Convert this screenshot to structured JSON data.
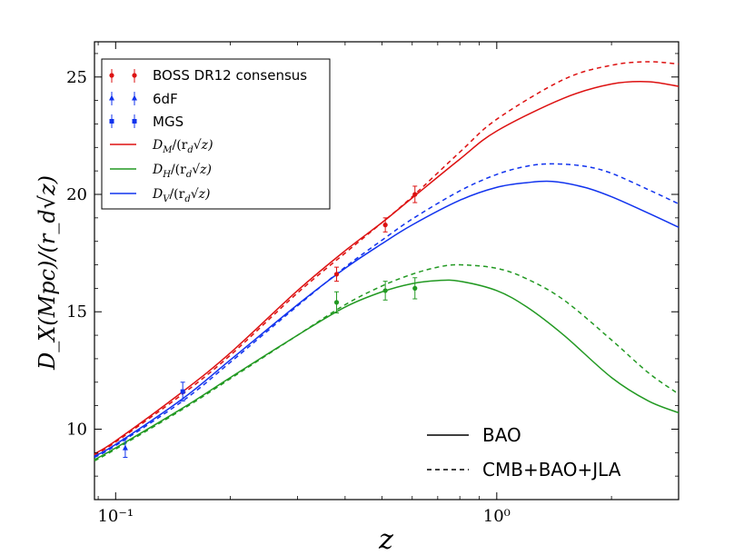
{
  "chart_data": {
    "type": "line",
    "xlabel": "z",
    "ylabel": "D_X(Mpc)/(r_d√z)",
    "xscale": "log",
    "xlim": [
      0.088,
      3.0
    ],
    "ylim": [
      7.0,
      26.5
    ],
    "yticks": [
      10,
      15,
      20,
      25
    ],
    "ytick_labels": [
      "10",
      "15",
      "20",
      "25"
    ],
    "xticks": [
      0.1,
      1.0
    ],
    "xtick_labels": [
      "10⁻¹",
      "10⁰"
    ],
    "grid": false,
    "legend_position": "top-left",
    "series": [
      {
        "name": "D_M/(r_d√z)",
        "label_main": "D",
        "label_sub": "M",
        "label_rest": "/(r",
        "label_sub2": "d",
        "label_tail": "√z)",
        "color": "#dd1111",
        "style": "solid",
        "x": [
          0.088,
          0.1,
          0.15,
          0.2,
          0.3,
          0.4,
          0.5,
          0.6,
          0.8,
          1.0,
          1.5,
          2.0,
          2.5,
          3.0
        ],
        "y": [
          8.95,
          9.5,
          11.6,
          13.25,
          15.9,
          17.6,
          18.8,
          19.85,
          21.5,
          22.7,
          24.1,
          24.7,
          24.8,
          24.6
        ]
      },
      {
        "name": "D_M/(r_d√z) CMB+BAO+JLA",
        "color": "#dd1111",
        "style": "dashed",
        "x": [
          0.088,
          0.1,
          0.15,
          0.2,
          0.3,
          0.4,
          0.5,
          0.6,
          0.8,
          1.0,
          1.5,
          2.0,
          2.5,
          3.0
        ],
        "y": [
          8.9,
          9.45,
          11.5,
          13.15,
          15.8,
          17.5,
          18.8,
          19.9,
          21.8,
          23.2,
          24.9,
          25.5,
          25.65,
          25.55
        ]
      },
      {
        "name": "D_H/(r_d√z)",
        "label_main": "D",
        "label_sub": "H",
        "label_rest": "/(r",
        "label_sub2": "d",
        "label_tail": "√z)",
        "color": "#229922",
        "style": "solid",
        "x": [
          0.088,
          0.1,
          0.15,
          0.2,
          0.3,
          0.4,
          0.5,
          0.6,
          0.7,
          0.8,
          1.0,
          1.2,
          1.5,
          2.0,
          2.5,
          3.0
        ],
        "y": [
          8.7,
          9.2,
          10.9,
          12.2,
          14.0,
          15.2,
          15.85,
          16.2,
          16.33,
          16.3,
          15.9,
          15.2,
          14.0,
          12.2,
          11.2,
          10.7
        ]
      },
      {
        "name": "D_H/(r_d√z) CMB+BAO+JLA",
        "color": "#229922",
        "style": "dashed",
        "x": [
          0.088,
          0.1,
          0.15,
          0.2,
          0.3,
          0.4,
          0.5,
          0.6,
          0.7,
          0.8,
          1.0,
          1.2,
          1.5,
          2.0,
          2.5,
          3.0
        ],
        "y": [
          8.65,
          9.15,
          10.85,
          12.15,
          14.0,
          15.3,
          16.1,
          16.6,
          16.9,
          17.0,
          16.85,
          16.4,
          15.5,
          13.8,
          12.4,
          11.5
        ]
      },
      {
        "name": "D_V/(r_d√z)",
        "label_main": "D",
        "label_sub": "V",
        "label_rest": "/(r",
        "label_sub2": "d",
        "label_tail": "√z)",
        "color": "#1133ee",
        "style": "solid",
        "x": [
          0.088,
          0.1,
          0.15,
          0.2,
          0.3,
          0.4,
          0.5,
          0.6,
          0.8,
          1.0,
          1.2,
          1.4,
          1.7,
          2.0,
          2.5,
          3.0
        ],
        "y": [
          8.85,
          9.35,
          11.3,
          12.95,
          15.3,
          16.85,
          17.9,
          18.7,
          19.75,
          20.3,
          20.5,
          20.55,
          20.3,
          19.9,
          19.2,
          18.6
        ]
      },
      {
        "name": "D_V/(r_d√z) CMB+BAO+JLA",
        "color": "#1133ee",
        "style": "dashed",
        "x": [
          0.088,
          0.1,
          0.15,
          0.2,
          0.3,
          0.4,
          0.5,
          0.6,
          0.8,
          1.0,
          1.2,
          1.4,
          1.7,
          2.0,
          2.5,
          3.0
        ],
        "y": [
          8.8,
          9.3,
          11.2,
          12.85,
          15.25,
          16.9,
          18.05,
          18.95,
          20.15,
          20.85,
          21.2,
          21.3,
          21.2,
          20.9,
          20.2,
          19.6
        ]
      }
    ],
    "data_points": [
      {
        "name": "BOSS DR12 consensus",
        "color": "#dd1111",
        "marker": "circle",
        "points": [
          {
            "x": 0.38,
            "y": 16.6,
            "err": 0.3
          },
          {
            "x": 0.51,
            "y": 18.7,
            "err": 0.3
          },
          {
            "x": 0.61,
            "y": 20.0,
            "err": 0.35
          }
        ]
      },
      {
        "name": "BOSS DR12 consensus D_H",
        "color": "#229922",
        "marker": "circle",
        "points": [
          {
            "x": 0.38,
            "y": 15.4,
            "err": 0.45
          },
          {
            "x": 0.51,
            "y": 15.9,
            "err": 0.4
          },
          {
            "x": 0.61,
            "y": 16.0,
            "err": 0.45
          }
        ]
      },
      {
        "name": "6dF",
        "color": "#1133ee",
        "marker": "triangle",
        "points": [
          {
            "x": 0.106,
            "y": 9.2,
            "err": 0.4
          }
        ]
      },
      {
        "name": "MGS",
        "color": "#1133ee",
        "marker": "square",
        "points": [
          {
            "x": 0.15,
            "y": 11.6,
            "err": 0.4
          }
        ]
      }
    ],
    "legend": {
      "boss": "BOSS DR12 consensus",
      "sixdf": "6dF",
      "mgs": "MGS"
    },
    "style_legend": {
      "solid": "BAO",
      "dashed": "CMB+BAO+JLA"
    }
  }
}
